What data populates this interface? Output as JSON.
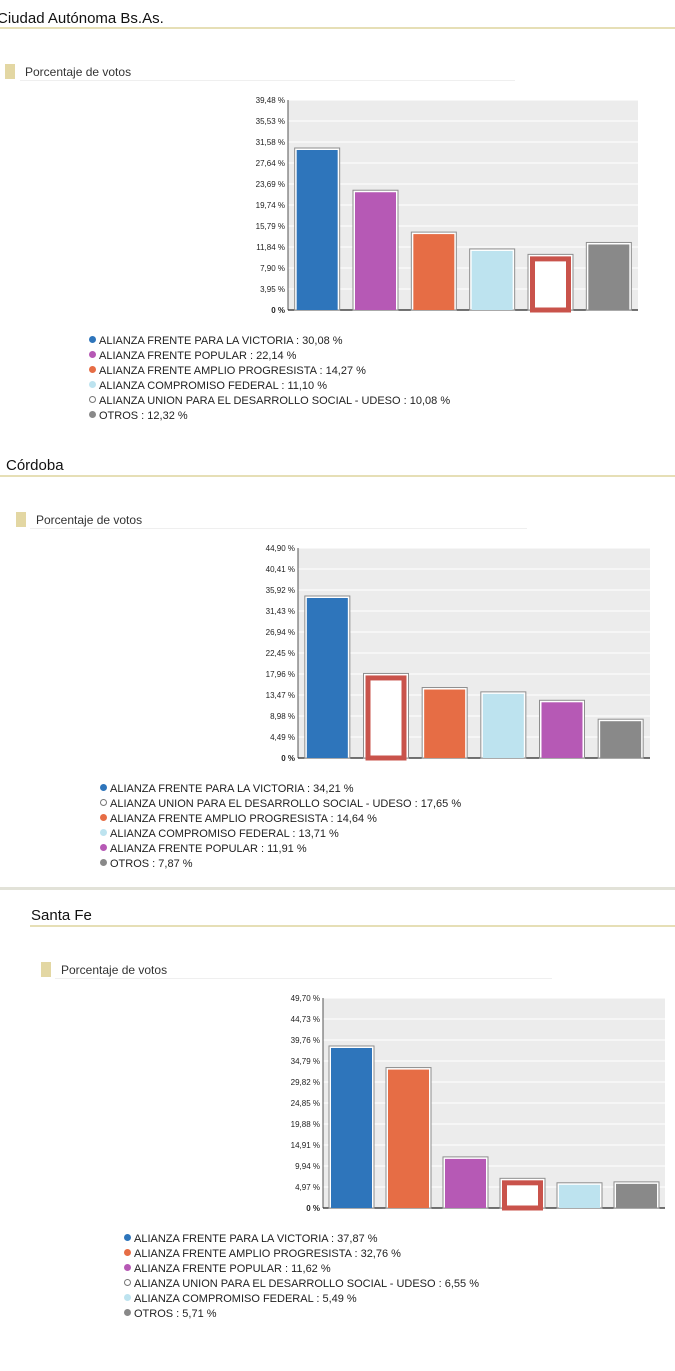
{
  "colors": {
    "blue": "#2e75bb",
    "magenta": "#b659b5",
    "orange": "#e66d45",
    "lightblue": "#bde3ef",
    "udeso_outline": "#c9534b",
    "gray": "#898989",
    "plot_bg": "#ececec"
  },
  "sections": [
    {
      "region": "Ciudad Autónoma Bs.As.",
      "subtitle": "Porcentaje de votos",
      "chart_data": {
        "type": "bar",
        "ylim": [
          0,
          39.48
        ],
        "yticks": [
          "39,48 %",
          "35,53 %",
          "31,58 %",
          "27,64 %",
          "23,69 %",
          "19,74 %",
          "15,79 %",
          "11,84 %",
          "7,90 %",
          "3,95 %",
          "0 %"
        ],
        "categories": [
          "ALIANZA FRENTE PARA LA VICTORIA",
          "ALIANZA FRENTE POPULAR",
          "ALIANZA FRENTE AMPLIO PROGRESISTA",
          "ALIANZA COMPROMISO FEDERAL",
          "ALIANZA UNION PARA EL DESARROLLO SOCIAL - UDESO",
          "OTROS"
        ],
        "values": [
          30.08,
          22.14,
          14.27,
          11.1,
          10.08,
          12.32
        ],
        "bar_colors": [
          "blue",
          "magenta",
          "orange",
          "lightblue",
          "udeso",
          "gray"
        ]
      },
      "legend": [
        {
          "text": "ALIANZA FRENTE PARA LA VICTORIA : 30,08 %",
          "color": "blue"
        },
        {
          "text": "ALIANZA FRENTE POPULAR : 22,14 %",
          "color": "magenta"
        },
        {
          "text": "ALIANZA FRENTE AMPLIO PROGRESISTA : 14,27 %",
          "color": "orange"
        },
        {
          "text": "ALIANZA COMPROMISO FEDERAL : 11,10 %",
          "color": "lightblue"
        },
        {
          "text": "ALIANZA UNION PARA EL DESARROLLO SOCIAL - UDESO : 10,08 %",
          "color": "udeso"
        },
        {
          "text": "OTROS : 12,32 %",
          "color": "gray"
        }
      ]
    },
    {
      "region": "Córdoba",
      "subtitle": "Porcentaje de votos",
      "chart_data": {
        "type": "bar",
        "ylim": [
          0,
          44.9
        ],
        "yticks": [
          "44,90 %",
          "40,41 %",
          "35,92 %",
          "31,43 %",
          "26,94 %",
          "22,45 %",
          "17,96 %",
          "13,47 %",
          "8,98 %",
          "4,49 %",
          "0 %"
        ],
        "categories": [
          "ALIANZA FRENTE PARA LA VICTORIA",
          "ALIANZA UNION PARA EL DESARROLLO SOCIAL - UDESO",
          "ALIANZA FRENTE AMPLIO PROGRESISTA",
          "ALIANZA COMPROMISO FEDERAL",
          "ALIANZA FRENTE POPULAR",
          "OTROS"
        ],
        "values": [
          34.21,
          17.65,
          14.64,
          13.71,
          11.91,
          7.87
        ],
        "bar_colors": [
          "blue",
          "udeso",
          "orange",
          "lightblue",
          "magenta",
          "gray"
        ]
      },
      "legend": [
        {
          "text": "ALIANZA FRENTE PARA LA VICTORIA : 34,21 %",
          "color": "blue"
        },
        {
          "text": "ALIANZA UNION PARA EL DESARROLLO SOCIAL - UDESO : 17,65 %",
          "color": "udeso"
        },
        {
          "text": "ALIANZA FRENTE AMPLIO PROGRESISTA : 14,64 %",
          "color": "orange"
        },
        {
          "text": "ALIANZA COMPROMISO FEDERAL : 13,71 %",
          "color": "lightblue"
        },
        {
          "text": "ALIANZA FRENTE POPULAR : 11,91 %",
          "color": "magenta"
        },
        {
          "text": "OTROS : 7,87 %",
          "color": "gray"
        }
      ]
    },
    {
      "region": "Santa Fe",
      "subtitle": "Porcentaje de votos",
      "chart_data": {
        "type": "bar",
        "ylim": [
          0,
          49.7
        ],
        "yticks": [
          "49,70 %",
          "44,73 %",
          "39,76 %",
          "34,79 %",
          "29,82 %",
          "24,85 %",
          "19,88 %",
          "14,91 %",
          "9,94 %",
          "4,97 %",
          "0 %"
        ],
        "categories": [
          "ALIANZA FRENTE PARA LA VICTORIA",
          "ALIANZA FRENTE AMPLIO PROGRESISTA",
          "ALIANZA FRENTE POPULAR",
          "ALIANZA UNION PARA EL DESARROLLO SOCIAL - UDESO",
          "ALIANZA COMPROMISO FEDERAL",
          "OTROS"
        ],
        "values": [
          37.87,
          32.76,
          11.62,
          6.55,
          5.49,
          5.71
        ],
        "bar_colors": [
          "blue",
          "orange",
          "magenta",
          "udeso",
          "lightblue",
          "gray"
        ]
      },
      "legend": [
        {
          "text": "ALIANZA FRENTE PARA LA VICTORIA : 37,87 %",
          "color": "blue"
        },
        {
          "text": "ALIANZA FRENTE AMPLIO PROGRESISTA : 32,76 %",
          "color": "orange"
        },
        {
          "text": "ALIANZA FRENTE POPULAR : 11,62 %",
          "color": "magenta"
        },
        {
          "text": "ALIANZA UNION PARA EL DESARROLLO SOCIAL - UDESO : 6,55 %",
          "color": "udeso"
        },
        {
          "text": "ALIANZA COMPROMISO FEDERAL : 5,49 %",
          "color": "lightblue"
        },
        {
          "text": "OTROS : 5,71 %",
          "color": "gray"
        }
      ]
    }
  ]
}
